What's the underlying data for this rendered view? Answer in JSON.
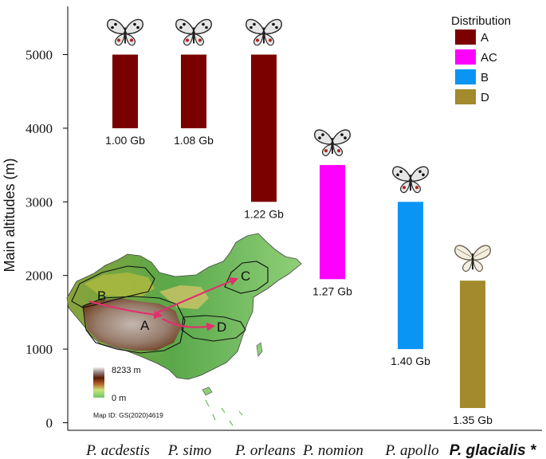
{
  "chart_data": {
    "type": "bar",
    "ylabel": "Main altitudes (m)",
    "ylim": [
      0,
      5500
    ],
    "yticks": [
      0,
      1000,
      2000,
      3000,
      4000,
      5000
    ],
    "bars": [
      {
        "category": "P. acdestis",
        "low": 4000,
        "high": 5000,
        "distribution": "A",
        "label": "1.00 Gb",
        "bold": false
      },
      {
        "category": "P. simo",
        "low": 4000,
        "high": 5000,
        "distribution": "A",
        "label": "1.08 Gb",
        "bold": false
      },
      {
        "category": "P. orleans",
        "low": 3000,
        "high": 5000,
        "distribution": "A",
        "label": "1.22 Gb",
        "bold": false
      },
      {
        "category": "P. nomion",
        "low": 1950,
        "high": 3500,
        "distribution": "AC",
        "label": "1.27 Gb",
        "bold": false
      },
      {
        "category": "P. apollo",
        "low": 1000,
        "high": 3000,
        "distribution": "B",
        "label": "1.40 Gb",
        "bold": false
      },
      {
        "category": "P. glacialis *",
        "low": 200,
        "high": 1930,
        "distribution": "D",
        "label": "1.35 Gb",
        "bold": true
      }
    ],
    "legend": {
      "title": "Distribution",
      "position": "top-right",
      "entries": [
        {
          "key": "A",
          "color": "#7b0000"
        },
        {
          "key": "AC",
          "color": "#ff00ff"
        },
        {
          "key": "B",
          "color": "#0a95f5"
        },
        {
          "key": "D",
          "color": "#a28a2d"
        }
      ]
    }
  },
  "map": {
    "region_labels": [
      "A",
      "B",
      "C",
      "D"
    ],
    "elevation_max": "8233 m",
    "elevation_min": "0 m",
    "map_id": "Map ID: GS(2020)4619"
  }
}
